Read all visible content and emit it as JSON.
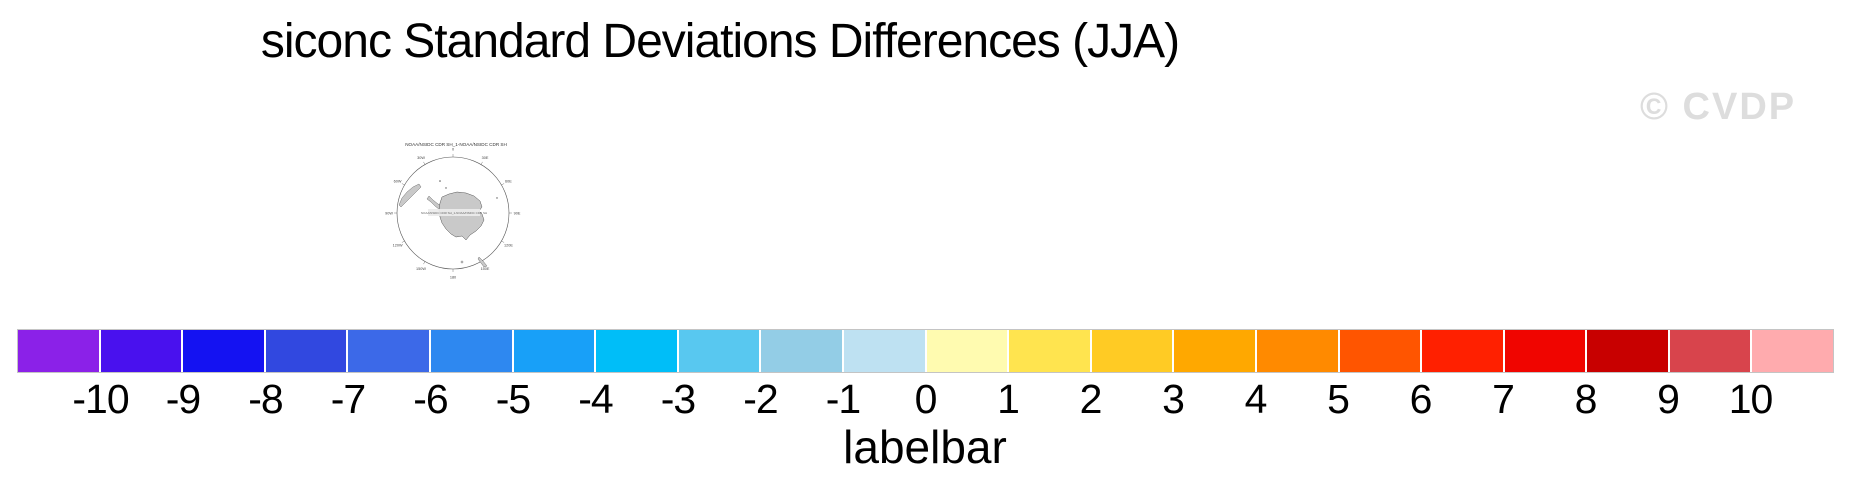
{
  "title": "siconc Standard Deviations Differences (JJA)",
  "watermark": "© CVDP",
  "colors": {
    "watermark": "#dddddd",
    "land": "#c9c9c9",
    "map_outline": "#555555"
  },
  "chart_data": {
    "type": "heatmap",
    "title": "siconc Standard Deviations Differences (JJA)",
    "variable": "siconc",
    "season": "JJA",
    "map": {
      "title": "NOAA/NSIDC CDR SH_1-NOAA/NSIDC CDR SH",
      "center_label": "NOAA/NSIDC CDR SH_1-NOAA/NSIDC CDR SH",
      "projection": "south-polar-stereographic",
      "lon_labels": [
        "0",
        "30E",
        "60E",
        "90E",
        "120E",
        "150E",
        "180",
        "150W",
        "120W",
        "90W",
        "60W",
        "30W"
      ]
    },
    "colorbar": {
      "label": "labelbar",
      "orientation": "horizontal",
      "tick_labels": [
        "-10",
        "-9",
        "-8",
        "-7",
        "-6",
        "-5",
        "-4",
        "-3",
        "-2",
        "-1",
        "0",
        "1",
        "2",
        "3",
        "4",
        "5",
        "6",
        "7",
        "8",
        "9",
        "10"
      ],
      "colors": [
        "#8B21E8",
        "#4911EE",
        "#1412F2",
        "#3148E0",
        "#3C69E8",
        "#2E88F0",
        "#18A0F8",
        "#00BEF8",
        "#58C8F0",
        "#93CDE6",
        "#BEE1F2",
        "#FFFBB0",
        "#FFE44F",
        "#FFCB24",
        "#FFA800",
        "#FF8A00",
        "#FF5500",
        "#FF2000",
        "#F00500",
        "#C80000",
        "#D8444C",
        "#FFABAE"
      ]
    }
  }
}
